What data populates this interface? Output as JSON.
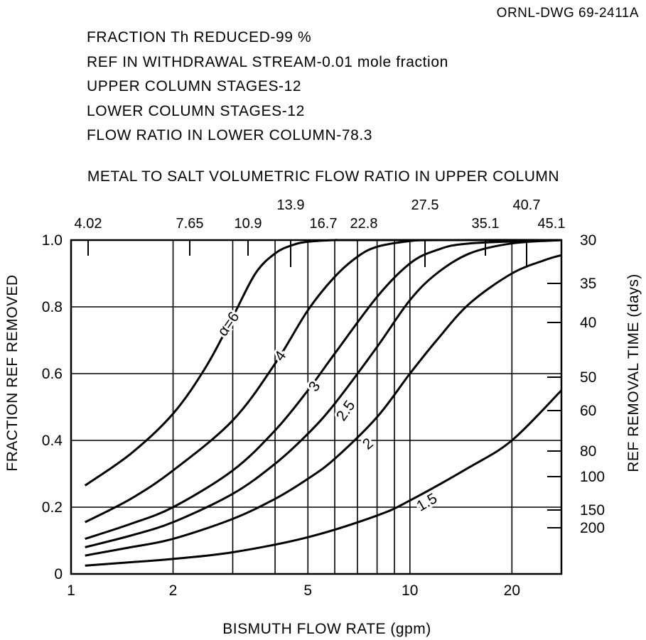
{
  "drawing_number": "ORNL-DWG 69-2411A",
  "parameters": [
    "FRACTION Th REDUCED-99 %",
    "REF IN WITHDRAWAL STREAM-0.01 mole fraction",
    "UPPER COLUMN STAGES-12",
    "LOWER COLUMN STAGES-12",
    "FLOW RATIO IN LOWER COLUMN-78.3"
  ],
  "chart_data": {
    "type": "line",
    "title": "METAL TO SALT VOLUMETRIC FLOW RATIO IN UPPER COLUMN",
    "xlabel": "BISMUTH FLOW RATE (gpm)",
    "ylabel": "FRACTION REF REMOVED",
    "y2label": "REF REMOVAL TIME (days)",
    "x_scale": "log",
    "xlim": [
      1,
      28
    ],
    "ylim": [
      0,
      1.0
    ],
    "x_ticks": [
      1,
      2,
      5,
      10,
      20
    ],
    "x_tick_labels": [
      "1",
      "2",
      "5",
      "10",
      "20"
    ],
    "x_gridlines": [
      2,
      3,
      4,
      5,
      6,
      7,
      8,
      9,
      10,
      20
    ],
    "y_ticks": [
      0,
      0.2,
      0.4,
      0.6,
      0.8,
      1.0
    ],
    "y_tick_labels": [
      "0",
      "0.2",
      "0.4",
      "0.6",
      "0.8",
      "1.0"
    ],
    "top_axis_labels": [
      "4.02",
      "7.65",
      "10.9",
      "13.9",
      "16.7",
      "22.8",
      "27.5",
      "35.1",
      "40.7",
      "45.1"
    ],
    "right_axis_labels": [
      "30",
      "35",
      "40",
      "50",
      "60",
      "80",
      "100",
      "150",
      "200"
    ],
    "grid": true,
    "series": [
      {
        "name": "α=6",
        "x": [
          1.1,
          1.5,
          2,
          2.5,
          3,
          3.5,
          4,
          4.5,
          5,
          6,
          7,
          28
        ],
        "y": [
          0.265,
          0.36,
          0.48,
          0.62,
          0.77,
          0.9,
          0.96,
          0.985,
          0.995,
          1.0,
          1.0,
          1.0
        ]
      },
      {
        "name": "4",
        "x": [
          1.1,
          1.5,
          2,
          3,
          4,
          5,
          6,
          7,
          8,
          10,
          12,
          28
        ],
        "y": [
          0.155,
          0.225,
          0.31,
          0.46,
          0.63,
          0.79,
          0.89,
          0.95,
          0.98,
          0.997,
          1.0,
          1.0
        ]
      },
      {
        "name": "3",
        "x": [
          1.1,
          1.5,
          2,
          3,
          4,
          5,
          6,
          8,
          10,
          12,
          15,
          28
        ],
        "y": [
          0.105,
          0.15,
          0.2,
          0.31,
          0.43,
          0.55,
          0.66,
          0.83,
          0.93,
          0.97,
          0.99,
          1.0
        ]
      },
      {
        "name": "2.5",
        "x": [
          1.1,
          1.5,
          2,
          3,
          4,
          5,
          6,
          8,
          10,
          12,
          15,
          20,
          28
        ],
        "y": [
          0.08,
          0.115,
          0.155,
          0.24,
          0.33,
          0.42,
          0.51,
          0.68,
          0.82,
          0.9,
          0.96,
          0.99,
          1.0
        ]
      },
      {
        "name": "2",
        "x": [
          1.1,
          1.5,
          2,
          3,
          4,
          5,
          6,
          8,
          10,
          12,
          15,
          20,
          25,
          28
        ],
        "y": [
          0.055,
          0.08,
          0.105,
          0.165,
          0.225,
          0.285,
          0.345,
          0.47,
          0.6,
          0.7,
          0.81,
          0.9,
          0.94,
          0.955
        ]
      },
      {
        "name": "1.5",
        "x": [
          1.1,
          1.5,
          2,
          3,
          5,
          8,
          10,
          15,
          20,
          28
        ],
        "y": [
          0.025,
          0.035,
          0.045,
          0.065,
          0.11,
          0.175,
          0.22,
          0.32,
          0.4,
          0.55
        ]
      }
    ]
  }
}
